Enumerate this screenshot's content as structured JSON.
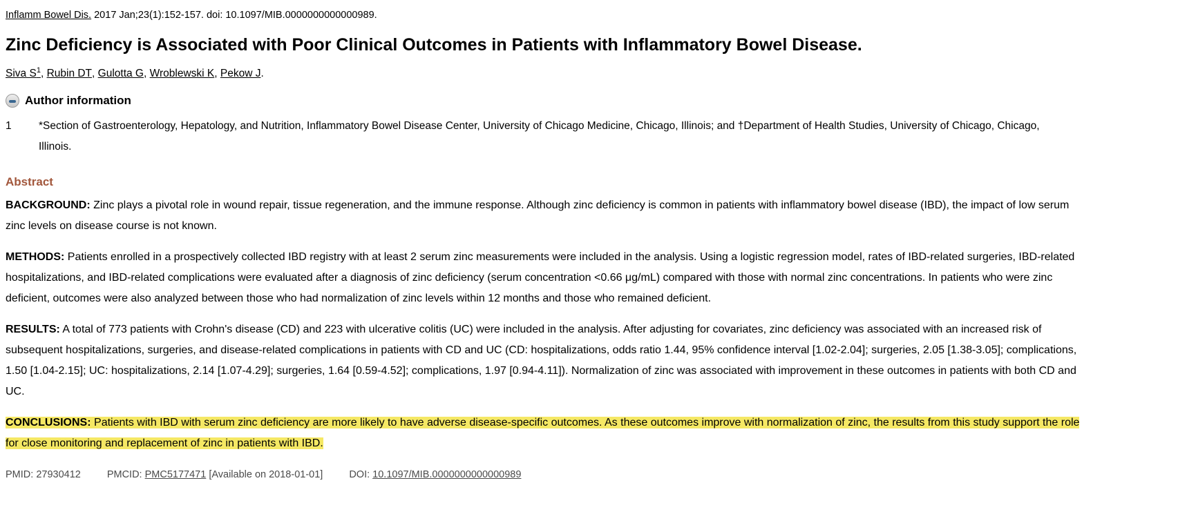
{
  "citation": {
    "journal_link": "Inflamm Bowel Dis.",
    "rest": " 2017 Jan;23(1):152-157. doi: 10.1097/MIB.0000000000000989."
  },
  "title": "Zinc Deficiency is Associated with Poor Clinical Outcomes in Patients with Inflammatory Bowel Disease.",
  "authors": [
    {
      "name": "Siva S",
      "sup": "1",
      "sep": ", "
    },
    {
      "name": "Rubin DT",
      "sup": "",
      "sep": ", "
    },
    {
      "name": "Gulotta G",
      "sup": "",
      "sep": ", "
    },
    {
      "name": "Wroblewski K",
      "sup": "",
      "sep": ", "
    },
    {
      "name": "Pekow J",
      "sup": "",
      "sep": "."
    }
  ],
  "author_information": {
    "toggle_icon": "minus-circle-icon",
    "heading": "Author information",
    "affiliations": [
      {
        "number": "1",
        "text": "*Section of Gastroenterology, Hepatology, and Nutrition, Inflammatory Bowel Disease Center, University of Chicago Medicine, Chicago, Illinois; and †Department of Health Studies, University of Chicago, Chicago, Illinois."
      }
    ]
  },
  "abstract": {
    "heading": "Abstract",
    "heading_color": "#a2573c",
    "highlight_color": "#f5e864",
    "sections": [
      {
        "label": "BACKGROUND:",
        "text": "Zinc plays a pivotal role in wound repair, tissue regeneration, and the immune response. Although zinc deficiency is common in patients with inflammatory bowel disease (IBD), the impact of low serum zinc levels on disease course is not known.",
        "highlighted": false
      },
      {
        "label": "METHODS:",
        "text": "Patients enrolled in a prospectively collected IBD registry with at least 2 serum zinc measurements were included in the analysis. Using a logistic regression model, rates of IBD-related surgeries, IBD-related hospitalizations, and IBD-related complications were evaluated after a diagnosis of zinc deficiency (serum concentration <0.66 μg/mL) compared with those with normal zinc concentrations. In patients who were zinc deficient, outcomes were also analyzed between those who had normalization of zinc levels within 12 months and those who remained deficient.",
        "highlighted": false
      },
      {
        "label": "RESULTS:",
        "text": "A total of 773 patients with Crohn's disease (CD) and 223 with ulcerative colitis (UC) were included in the analysis. After adjusting for covariates, zinc deficiency was associated with an increased risk of subsequent hospitalizations, surgeries, and disease-related complications in patients with CD and UC (CD: hospitalizations, odds ratio 1.44, 95% confidence interval [1.02-2.04]; surgeries, 2.05 [1.38-3.05]; complications, 1.50 [1.04-2.15]; UC: hospitalizations, 2.14 [1.07-4.29]; surgeries, 1.64 [0.59-4.52]; complications, 1.97 [0.94-4.11]). Normalization of zinc was associated with improvement in these outcomes in patients with both CD and UC.",
        "highlighted": false
      },
      {
        "label": "CONCLUSIONS:",
        "text": "Patients with IBD with serum zinc deficiency are more likely to have adverse disease-specific outcomes. As these outcomes improve with normalization of zinc, the results from this study support the role for close monitoring and replacement of zinc in patients with IBD.",
        "highlighted": true
      }
    ]
  },
  "footer": {
    "pmid_label": "PMID:",
    "pmid_value": "27930412",
    "pmcid_label": "PMCID:",
    "pmcid_link": "PMC5177471",
    "pmcid_note": "[Available on 2018-01-01]",
    "doi_label": "DOI:",
    "doi_link": "10.1097/MIB.0000000000000989"
  }
}
